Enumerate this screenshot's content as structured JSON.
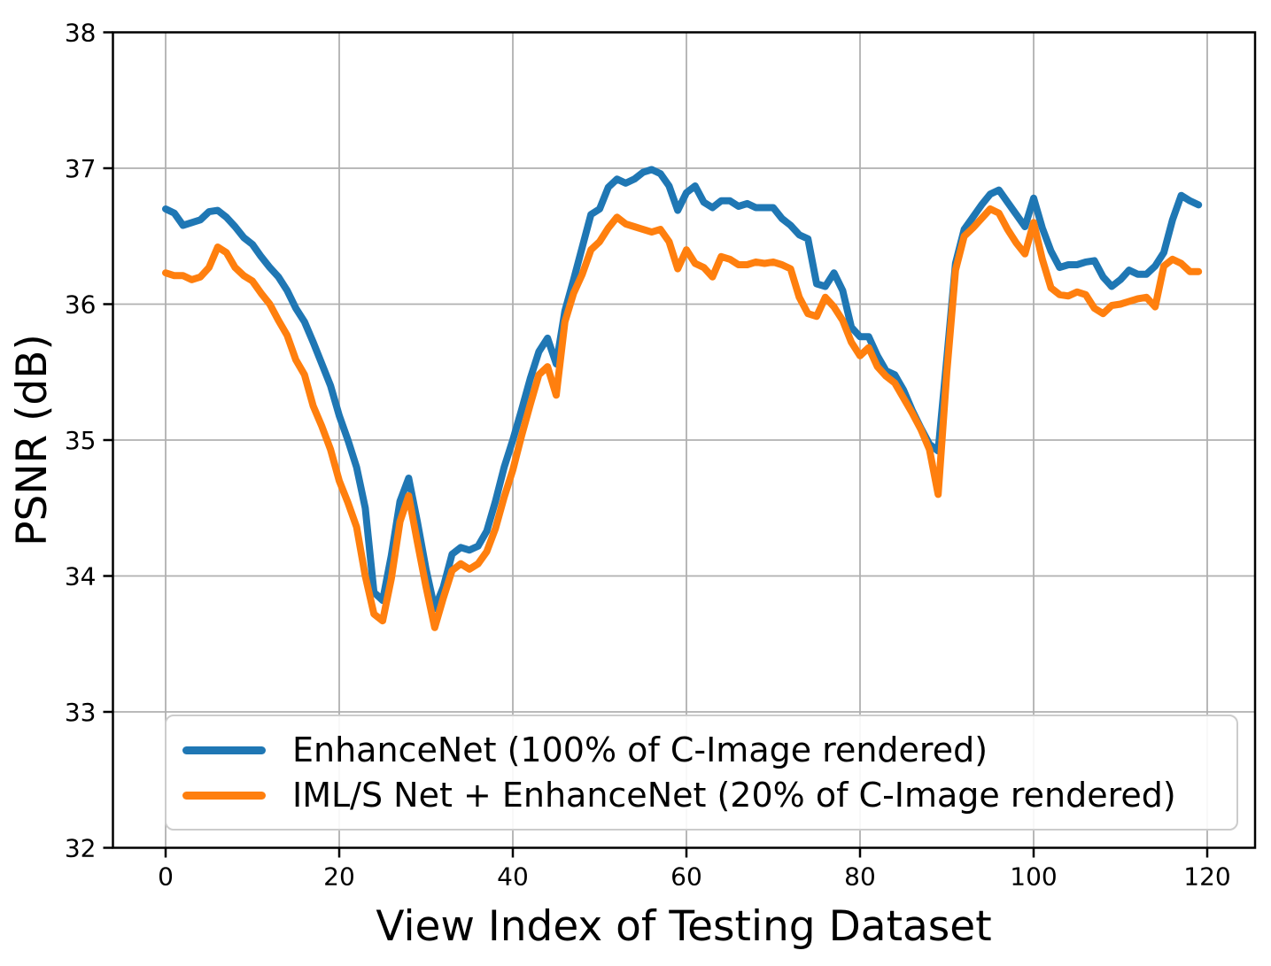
{
  "figure": {
    "xlabel": "View Index of Testing Dataset",
    "ylabel": "PSNR (dB)"
  },
  "chart_data": {
    "type": "line",
    "title": "",
    "xlabel": "View Index of Testing Dataset",
    "ylabel": "PSNR (dB)",
    "xlim": [
      -6,
      125.5
    ],
    "ylim": [
      32,
      38
    ],
    "x_ticks": [
      0,
      20,
      40,
      60,
      80,
      100,
      120
    ],
    "y_ticks": [
      32,
      33,
      34,
      35,
      36,
      37,
      38
    ],
    "grid": true,
    "grid_color": "#b0b0b0",
    "legend_position": "lower left",
    "x_start": 0,
    "x_step": 1,
    "series": [
      {
        "name": "EnhanceNet (100% of C-Image rendered)",
        "color": "#1f77b4",
        "values": [
          36.7,
          36.67,
          36.58,
          36.6,
          36.62,
          36.68,
          36.69,
          36.64,
          36.57,
          36.49,
          36.44,
          36.35,
          36.27,
          36.2,
          36.1,
          35.97,
          35.87,
          35.72,
          35.56,
          35.4,
          35.18,
          35.0,
          34.8,
          34.5,
          33.88,
          33.82,
          34.15,
          34.55,
          34.72,
          34.4,
          34.05,
          33.76,
          33.92,
          34.16,
          34.21,
          34.19,
          34.22,
          34.33,
          34.55,
          34.8,
          35.0,
          35.22,
          35.45,
          35.65,
          35.75,
          35.56,
          35.95,
          36.18,
          36.42,
          36.66,
          36.7,
          36.86,
          36.92,
          36.89,
          36.92,
          36.97,
          36.99,
          36.96,
          36.87,
          36.69,
          36.82,
          36.87,
          36.75,
          36.71,
          36.76,
          36.76,
          36.72,
          36.74,
          36.71,
          36.71,
          36.71,
          36.63,
          36.58,
          36.51,
          36.48,
          36.15,
          36.13,
          36.23,
          36.1,
          35.83,
          35.76,
          35.76,
          35.62,
          35.51,
          35.48,
          35.37,
          35.22,
          35.09,
          34.97,
          34.92,
          35.6,
          36.3,
          36.55,
          36.64,
          36.73,
          36.81,
          36.84,
          36.75,
          36.66,
          36.57,
          36.78,
          36.56,
          36.39,
          36.27,
          36.29,
          36.29,
          36.31,
          36.32,
          36.2,
          36.13,
          36.18,
          36.25,
          36.22,
          36.22,
          36.28,
          36.38,
          36.62,
          36.8,
          36.76,
          36.73
        ]
      },
      {
        "name": "IML/S Net + EnhanceNet (20% of C-Image rendered)",
        "color": "#ff7f0e",
        "values": [
          36.23,
          36.21,
          36.21,
          36.18,
          36.2,
          36.27,
          36.42,
          36.38,
          36.27,
          36.21,
          36.17,
          36.08,
          36.0,
          35.88,
          35.77,
          35.59,
          35.48,
          35.25,
          35.1,
          34.93,
          34.7,
          34.54,
          34.36,
          34.0,
          33.72,
          33.67,
          33.98,
          34.4,
          34.59,
          34.25,
          33.92,
          33.62,
          33.84,
          34.04,
          34.09,
          34.05,
          34.09,
          34.18,
          34.35,
          34.58,
          34.78,
          35.03,
          35.26,
          35.48,
          35.54,
          35.33,
          35.87,
          36.08,
          36.22,
          36.4,
          36.46,
          36.56,
          36.64,
          36.59,
          36.57,
          36.55,
          36.53,
          36.55,
          36.46,
          36.26,
          36.4,
          36.3,
          36.27,
          36.2,
          36.35,
          36.33,
          36.29,
          36.29,
          36.31,
          36.3,
          36.31,
          36.29,
          36.26,
          36.05,
          35.93,
          35.91,
          36.05,
          35.98,
          35.88,
          35.72,
          35.62,
          35.68,
          35.54,
          35.47,
          35.42,
          35.31,
          35.2,
          35.08,
          34.93,
          34.6,
          35.5,
          36.25,
          36.5,
          36.56,
          36.63,
          36.7,
          36.67,
          36.55,
          36.45,
          36.37,
          36.6,
          36.33,
          36.12,
          36.07,
          36.06,
          36.09,
          36.07,
          35.97,
          35.93,
          35.99,
          36.0,
          36.02,
          36.04,
          36.05,
          35.98,
          36.28,
          36.33,
          36.3,
          36.24,
          36.24
        ]
      }
    ]
  }
}
